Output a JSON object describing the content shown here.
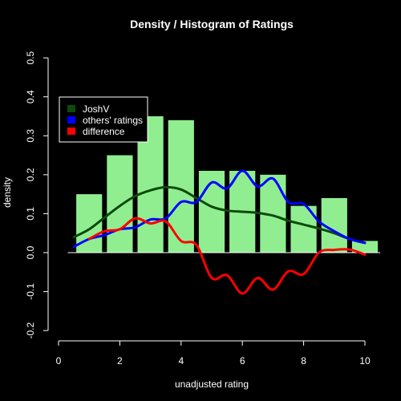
{
  "chart_data": {
    "type": "bar",
    "title": "Density / Histogram of Ratings",
    "xlabel": "unadjusted rating",
    "ylabel": "density",
    "xlim": [
      0,
      10
    ],
    "ylim": [
      -0.2,
      0.5
    ],
    "x_ticks": [
      "0",
      "2",
      "4",
      "6",
      "8",
      "10"
    ],
    "y_ticks": [
      "-0.2",
      "-0.1",
      "0.0",
      "0.1",
      "0.2",
      "0.3",
      "0.4",
      "0.5"
    ],
    "colors": {
      "background": "#000000",
      "bars": "#90ee90",
      "josh": "#0b4a0b",
      "others": "#0000ff",
      "difference": "#ff0000",
      "text": "#ffffff"
    },
    "histogram": [
      {
        "x0": 0.5,
        "x1": 1.5,
        "value": 0.15
      },
      {
        "x0": 1.5,
        "x2": 0,
        "x1": 2.5,
        "value": 0.25
      },
      {
        "x0": 2.5,
        "x1": 3.5,
        "value": 0.35
      },
      {
        "x0": 3.5,
        "x1": 4.5,
        "value": 0.34
      },
      {
        "x0": 4.5,
        "x1": 5.5,
        "value": 0.21
      },
      {
        "x0": 5.5,
        "x1": 6.5,
        "value": 0.21
      },
      {
        "x0": 6.5,
        "x1": 7.5,
        "value": 0.2
      },
      {
        "x0": 7.5,
        "x1": 8.5,
        "value": 0.12
      },
      {
        "x0": 8.5,
        "x1": 9.5,
        "value": 0.14
      },
      {
        "x0": 9.5,
        "x1": 10.5,
        "value": 0.03
      }
    ],
    "series": [
      {
        "name": "JoshV",
        "points": [
          [
            0.5,
            0.04
          ],
          [
            1.0,
            0.06
          ],
          [
            1.5,
            0.09
          ],
          [
            2.0,
            0.12
          ],
          [
            2.5,
            0.145
          ],
          [
            3.0,
            0.16
          ],
          [
            3.5,
            0.168
          ],
          [
            4.0,
            0.162
          ],
          [
            4.5,
            0.14
          ],
          [
            5.0,
            0.118
          ],
          [
            5.5,
            0.108
          ],
          [
            6.0,
            0.105
          ],
          [
            6.5,
            0.102
          ],
          [
            7.0,
            0.095
          ],
          [
            7.5,
            0.082
          ],
          [
            8.0,
            0.072
          ],
          [
            8.5,
            0.062
          ],
          [
            9.0,
            0.05
          ],
          [
            9.5,
            0.035
          ],
          [
            10.0,
            0.025
          ]
        ]
      },
      {
        "name": "others' ratings",
        "points": [
          [
            0.5,
            0.015
          ],
          [
            1.0,
            0.035
          ],
          [
            1.5,
            0.045
          ],
          [
            2.0,
            0.06
          ],
          [
            2.5,
            0.065
          ],
          [
            3.0,
            0.085
          ],
          [
            3.5,
            0.088
          ],
          [
            4.0,
            0.13
          ],
          [
            4.5,
            0.13
          ],
          [
            5.0,
            0.18
          ],
          [
            5.5,
            0.165
          ],
          [
            6.0,
            0.21
          ],
          [
            6.5,
            0.17
          ],
          [
            7.0,
            0.19
          ],
          [
            7.5,
            0.13
          ],
          [
            8.0,
            0.125
          ],
          [
            8.5,
            0.08
          ],
          [
            9.0,
            0.055
          ],
          [
            9.5,
            0.035
          ],
          [
            10.0,
            0.025
          ]
        ]
      },
      {
        "name": "difference",
        "points": [
          [
            1.0,
            0.035
          ],
          [
            1.5,
            0.055
          ],
          [
            2.0,
            0.06
          ],
          [
            2.5,
            0.088
          ],
          [
            3.0,
            0.075
          ],
          [
            3.5,
            0.08
          ],
          [
            4.0,
            0.03
          ],
          [
            4.5,
            0.02
          ],
          [
            5.0,
            -0.065
          ],
          [
            5.5,
            -0.058
          ],
          [
            6.0,
            -0.105
          ],
          [
            6.5,
            -0.065
          ],
          [
            7.0,
            -0.095
          ],
          [
            7.5,
            -0.048
          ],
          [
            8.0,
            -0.055
          ],
          [
            8.5,
            0.0
          ],
          [
            9.0,
            0.007
          ],
          [
            9.5,
            0.008
          ],
          [
            10.0,
            -0.005
          ]
        ]
      }
    ],
    "legend": {
      "position": "top-left",
      "entries": [
        "JoshV",
        "others' ratings",
        "difference"
      ]
    }
  }
}
